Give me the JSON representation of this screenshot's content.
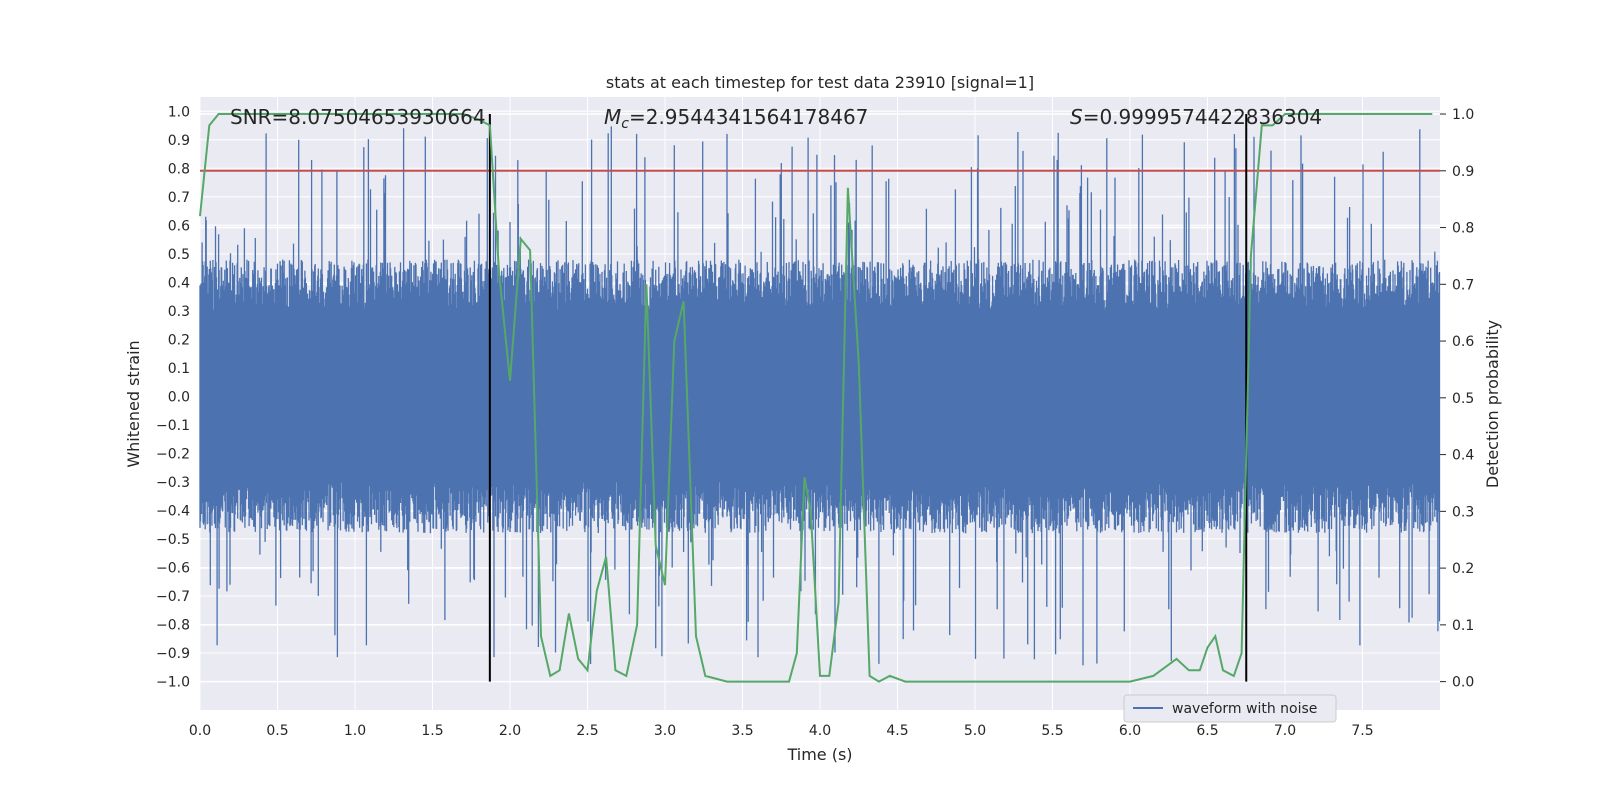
{
  "chart_data": {
    "type": "line",
    "title": "stats at each timestep for test data 23910 [signal=1]",
    "xlabel": "Time (s)",
    "ylabel_left": "Whitened strain",
    "ylabel_right": "Detection probability",
    "xlim": [
      0.0,
      8.0
    ],
    "ylim_left": [
      -1.1,
      1.05
    ],
    "ylim_right": [
      -0.05,
      1.03
    ],
    "x_ticks": [
      "0.0",
      "0.5",
      "1.0",
      "1.5",
      "2.0",
      "2.5",
      "3.0",
      "3.5",
      "4.0",
      "4.5",
      "5.0",
      "5.5",
      "6.0",
      "6.5",
      "7.0",
      "7.5"
    ],
    "y_ticks_left": [
      "1.0",
      "0.9",
      "0.8",
      "0.7",
      "0.6",
      "0.5",
      "0.4",
      "0.3",
      "0.2",
      "0.1",
      "0.0",
      "-0.1",
      "-0.2",
      "-0.3",
      "-0.4",
      "-0.5",
      "-0.6",
      "-0.7",
      "-0.8",
      "-0.9",
      "-1.0"
    ],
    "y_ticks_right": [
      "1.0",
      "0.9",
      "0.8",
      "0.7",
      "0.6",
      "0.5",
      "0.4",
      "0.3",
      "0.2",
      "0.1",
      "0.0"
    ],
    "grid": true,
    "annotations": {
      "snr": "SNR=8.07504653930664",
      "mc_symbol": "M",
      "mc_sub": "c",
      "mc_value": "=2.9544341564178467",
      "s_symbol": "S",
      "s_value": "=0.9999574422836304"
    },
    "vlines_x": [
      1.87,
      6.75
    ],
    "threshold_prob": 0.9,
    "legend": {
      "label": "waveform with noise",
      "position": "lower-right"
    },
    "series": [
      {
        "name": "waveform with noise",
        "axis": "left",
        "color": "#4c72b0",
        "description": "whitened strain time series, roughly uniform noise band between -0.4 and 0.4 with spikes to about +/-0.95"
      },
      {
        "name": "detection probability",
        "axis": "right",
        "color": "#55a868",
        "x": [
          0.0,
          0.06,
          0.12,
          0.25,
          0.5,
          0.75,
          1.0,
          1.25,
          1.5,
          1.7,
          1.8,
          1.87,
          1.93,
          2.0,
          2.07,
          2.13,
          2.2,
          2.26,
          2.32,
          2.38,
          2.44,
          2.5,
          2.56,
          2.62,
          2.68,
          2.75,
          2.82,
          2.88,
          2.94,
          3.0,
          3.06,
          3.12,
          3.2,
          3.26,
          3.4,
          3.6,
          3.75,
          3.8,
          3.85,
          3.9,
          3.94,
          4.0,
          4.06,
          4.12,
          4.18,
          4.25,
          4.32,
          4.38,
          4.45,
          4.55,
          4.6,
          4.7,
          4.85,
          5.0,
          5.2,
          5.5,
          5.8,
          6.0,
          6.15,
          6.25,
          6.3,
          6.38,
          6.45,
          6.5,
          6.55,
          6.6,
          6.67,
          6.72,
          6.78,
          6.85,
          6.92,
          7.0,
          7.2,
          7.5,
          7.7,
          7.95
        ],
        "y": [
          0.82,
          0.98,
          1.0,
          1.0,
          1.0,
          1.0,
          1.0,
          1.0,
          1.0,
          1.0,
          0.99,
          0.98,
          0.72,
          0.53,
          0.78,
          0.76,
          0.08,
          0.01,
          0.02,
          0.12,
          0.04,
          0.02,
          0.16,
          0.22,
          0.02,
          0.01,
          0.1,
          0.7,
          0.24,
          0.17,
          0.6,
          0.67,
          0.08,
          0.01,
          0.0,
          0.0,
          0.0,
          0.0,
          0.05,
          0.36,
          0.3,
          0.01,
          0.01,
          0.14,
          0.87,
          0.56,
          0.01,
          0.0,
          0.01,
          0.0,
          0.0,
          0.0,
          0.0,
          0.0,
          0.0,
          0.0,
          0.0,
          0.0,
          0.01,
          0.03,
          0.04,
          0.02,
          0.02,
          0.06,
          0.08,
          0.02,
          0.01,
          0.05,
          0.75,
          0.98,
          0.98,
          1.0,
          1.0,
          1.0,
          1.0,
          1.0
        ]
      }
    ]
  }
}
